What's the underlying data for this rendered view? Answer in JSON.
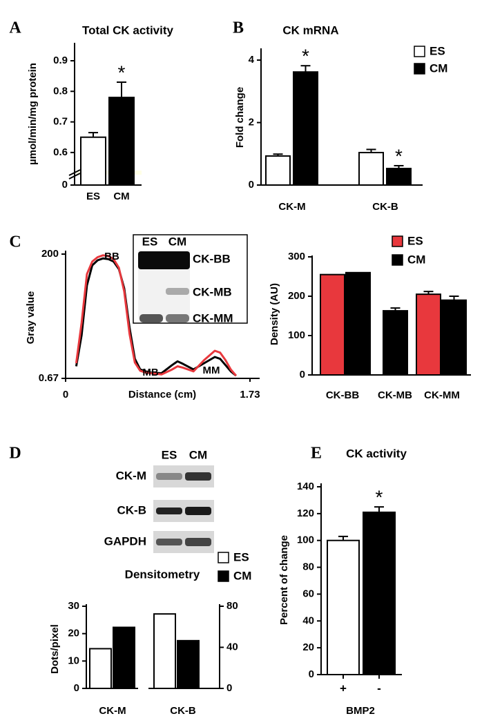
{
  "chart_data": [
    {
      "type": "bar",
      "panel": "A",
      "title": "Total CK activity",
      "ylabel": "µmol/min/mg protein",
      "categories": [
        "ES",
        "CM"
      ],
      "values": [
        0.65,
        0.78
      ],
      "errors": [
        0.015,
        0.05
      ],
      "colors": [
        "#ffffff",
        "#000000"
      ],
      "markers": [
        null,
        "*"
      ],
      "ylim": [
        0.55,
        0.9
      ],
      "yticks": [
        0,
        0.6,
        0.7,
        0.8,
        0.9
      ],
      "axis_break": true
    },
    {
      "type": "bar",
      "panel": "B",
      "title": "CK mRNA",
      "ylabel": "Fold change",
      "categories": [
        "CK-M",
        "CK-B"
      ],
      "series": [
        {
          "name": "ES",
          "color": "#ffffff",
          "values": [
            0.93,
            1.04
          ],
          "errors": [
            0.06,
            0.1
          ],
          "markers": [
            null,
            null
          ]
        },
        {
          "name": "CM",
          "color": "#000000",
          "values": [
            3.62,
            0.53
          ],
          "errors": [
            0.2,
            0.09
          ],
          "markers": [
            "*",
            "*"
          ]
        }
      ],
      "ylim": [
        0,
        4.2
      ],
      "yticks": [
        0,
        2,
        4
      ],
      "legend": "top-right"
    },
    {
      "type": "line",
      "panel": "C",
      "ylabel": "Gray value",
      "xlabel": "Distance (cm)",
      "peak_labels": [
        "BB",
        "MB",
        "MM"
      ],
      "inset": {
        "lanes": [
          "ES",
          "CM"
        ],
        "bands": [
          "CK-BB",
          "CK-MB",
          "CK-MM"
        ]
      },
      "x": [
        0.1,
        0.15,
        0.2,
        0.25,
        0.3,
        0.35,
        0.4,
        0.45,
        0.5,
        0.55,
        0.6,
        0.65,
        0.7,
        0.75,
        0.8,
        0.9,
        1.0,
        1.05,
        1.1,
        1.2,
        1.3,
        1.4,
        1.45,
        1.5,
        1.55,
        1.6
      ],
      "series": [
        {
          "color": "#000000",
          "values": [
            20,
            70,
            150,
            182,
            190,
            193,
            192,
            188,
            176,
            145,
            82,
            32,
            15,
            12,
            10,
            9,
            22,
            28,
            24,
            15,
            25,
            35,
            32,
            22,
            12,
            5
          ]
        },
        {
          "color": "#e8383d",
          "values": [
            25,
            90,
            168,
            188,
            195,
            198,
            197,
            192,
            178,
            140,
            72,
            26,
            13,
            10,
            9,
            7,
            15,
            20,
            18,
            12,
            30,
            45,
            42,
            30,
            15,
            5
          ]
        }
      ],
      "xlim": [
        0,
        1.73
      ],
      "xticks": [
        0,
        1.73
      ],
      "ylim": [
        0.67,
        200
      ],
      "yticks": [
        0.67,
        200
      ]
    },
    {
      "type": "bar",
      "ylabel": "Density (AU)",
      "categories": [
        "CK-BB",
        "CK-MB",
        "CK-MM"
      ],
      "series": [
        {
          "name": "ES",
          "color": "#e8383d",
          "values": [
            255,
            null,
            205
          ],
          "errors": [
            null,
            null,
            7
          ]
        },
        {
          "name": "CM",
          "color": "#000000",
          "values": [
            260,
            163,
            190
          ],
          "errors": [
            null,
            7,
            10
          ]
        }
      ],
      "ylim": [
        0,
        300
      ],
      "yticks": [
        0,
        100,
        200,
        300
      ],
      "legend": "top-right"
    },
    {
      "type": "bar",
      "panel": "D",
      "title": "Densitometry",
      "ylabel": "Dots/pixel",
      "blot": {
        "lanes": [
          "ES",
          "CM"
        ],
        "bands": [
          "CK-M",
          "CK-B",
          "GAPDH"
        ]
      },
      "categories": [
        "CK-M",
        "CK-B"
      ],
      "category_axis": [
        "y",
        "y2"
      ],
      "series": [
        {
          "name": "ES",
          "color": "#ffffff",
          "values": [
            14.5,
            72.5
          ]
        },
        {
          "name": "CM",
          "color": "#000000",
          "values": [
            22.3,
            46.5
          ]
        }
      ],
      "ylim": [
        0,
        30
      ],
      "yticks": [
        0,
        10,
        20,
        30
      ],
      "y2lim": [
        0,
        80
      ],
      "y2ticks": [
        0,
        40,
        80
      ],
      "legend": "top-right"
    },
    {
      "type": "bar",
      "panel": "E",
      "title": "CK activity",
      "ylabel": "Percent of change",
      "xlabel": "BMP2",
      "categories": [
        "+",
        "-"
      ],
      "values": [
        100,
        121
      ],
      "errors": [
        3,
        4
      ],
      "colors": [
        "#ffffff",
        "#000000"
      ],
      "markers": [
        null,
        "*"
      ],
      "ylim": [
        0,
        140
      ],
      "yticks": [
        0,
        20,
        40,
        60,
        80,
        100,
        120,
        140
      ]
    }
  ]
}
